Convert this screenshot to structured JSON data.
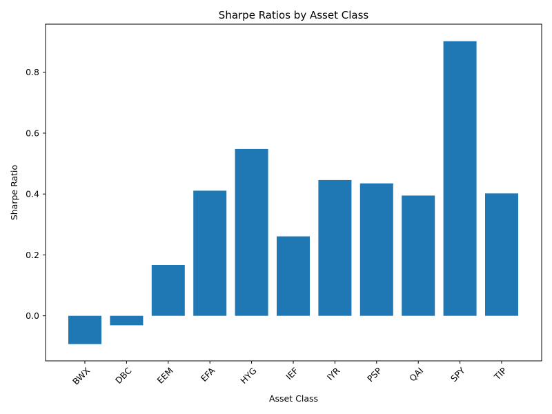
{
  "chart_data": {
    "type": "bar",
    "title": "Sharpe Ratios by Asset Class",
    "xlabel": "Asset Class",
    "ylabel": "Sharpe Ratio",
    "categories": [
      "BWX",
      "DBC",
      "EEM",
      "EFA",
      "HYG",
      "IEF",
      "IYR",
      "PSP",
      "QAI",
      "SPY",
      "TIP"
    ],
    "values": [
      -0.093,
      -0.031,
      0.167,
      0.411,
      0.548,
      0.261,
      0.446,
      0.435,
      0.395,
      0.902,
      0.402
    ],
    "ylim": [
      -0.148,
      0.958
    ],
    "yticks": [
      0.0,
      0.2,
      0.4,
      0.6,
      0.8
    ],
    "ytick_labels": [
      "0.0",
      "0.2",
      "0.4",
      "0.6",
      "0.8"
    ],
    "bar_color": "#1f77b4",
    "grid": false,
    "legend": "none"
  }
}
